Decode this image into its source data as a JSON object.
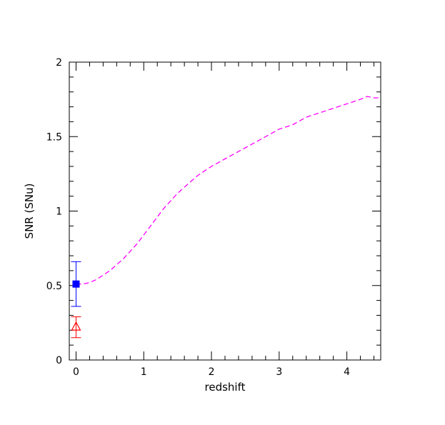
{
  "chart_data": {
    "type": "line",
    "xlabel": "redshift",
    "ylabel": "SNR (SNu)",
    "xlim": [
      -0.1,
      4.5
    ],
    "ylim": [
      0,
      2
    ],
    "x_ticks": [
      "0",
      "1",
      "2",
      "3",
      "4"
    ],
    "y_ticks": [
      "0",
      "0.5",
      "1",
      "1.5",
      "2"
    ],
    "grid": false,
    "legend": "none",
    "series": [
      {
        "style": "dashed",
        "color": "#ff00ff",
        "x": [
          0.0,
          0.1,
          0.2,
          0.3,
          0.4,
          0.5,
          0.6,
          0.7,
          0.8,
          0.9,
          1.0,
          1.1,
          1.2,
          1.3,
          1.4,
          1.5,
          1.6,
          1.8,
          2.0,
          2.2,
          2.4,
          2.6,
          2.8,
          3.0,
          3.2,
          3.4,
          3.6,
          3.8,
          4.0,
          4.2,
          4.3,
          4.4,
          4.5
        ],
        "y": [
          0.51,
          0.51,
          0.52,
          0.54,
          0.57,
          0.6,
          0.64,
          0.68,
          0.73,
          0.78,
          0.84,
          0.9,
          0.96,
          1.02,
          1.07,
          1.12,
          1.16,
          1.24,
          1.3,
          1.35,
          1.4,
          1.45,
          1.5,
          1.55,
          1.58,
          1.63,
          1.66,
          1.69,
          1.72,
          1.75,
          1.77,
          1.76,
          1.76
        ]
      },
      {
        "marker": "filled-square",
        "color": "#0000ff",
        "x": [
          0
        ],
        "y": [
          0.51
        ],
        "yerr_low": [
          0.36
        ],
        "yerr_high": [
          0.66
        ]
      },
      {
        "marker": "open-triangle",
        "color": "#ff0000",
        "x": [
          0
        ],
        "y": [
          0.22
        ],
        "yerr_low": [
          0.15
        ],
        "yerr_high": [
          0.29
        ]
      }
    ]
  }
}
